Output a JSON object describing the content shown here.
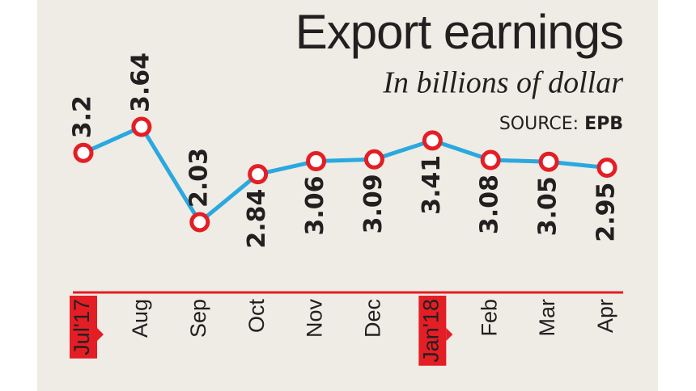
{
  "chart_data": {
    "type": "line",
    "title": "Export earnings",
    "subtitle": "In billions of dollar",
    "source_label": "SOURCE:",
    "source": "EPB",
    "categories": [
      "Jul'17",
      "Aug",
      "Sep",
      "Oct",
      "Nov",
      "Dec",
      "Jan'18",
      "Feb",
      "Mar",
      "Apr"
    ],
    "series": [
      {
        "color": "#2aa8df",
        "values": [
          3.2,
          3.64,
          2.03,
          2.84,
          3.06,
          3.09,
          3.41,
          3.08,
          3.05,
          2.95
        ]
      }
    ],
    "marker_color": "#e31e25",
    "highlight_color": "#e31e25"
  }
}
